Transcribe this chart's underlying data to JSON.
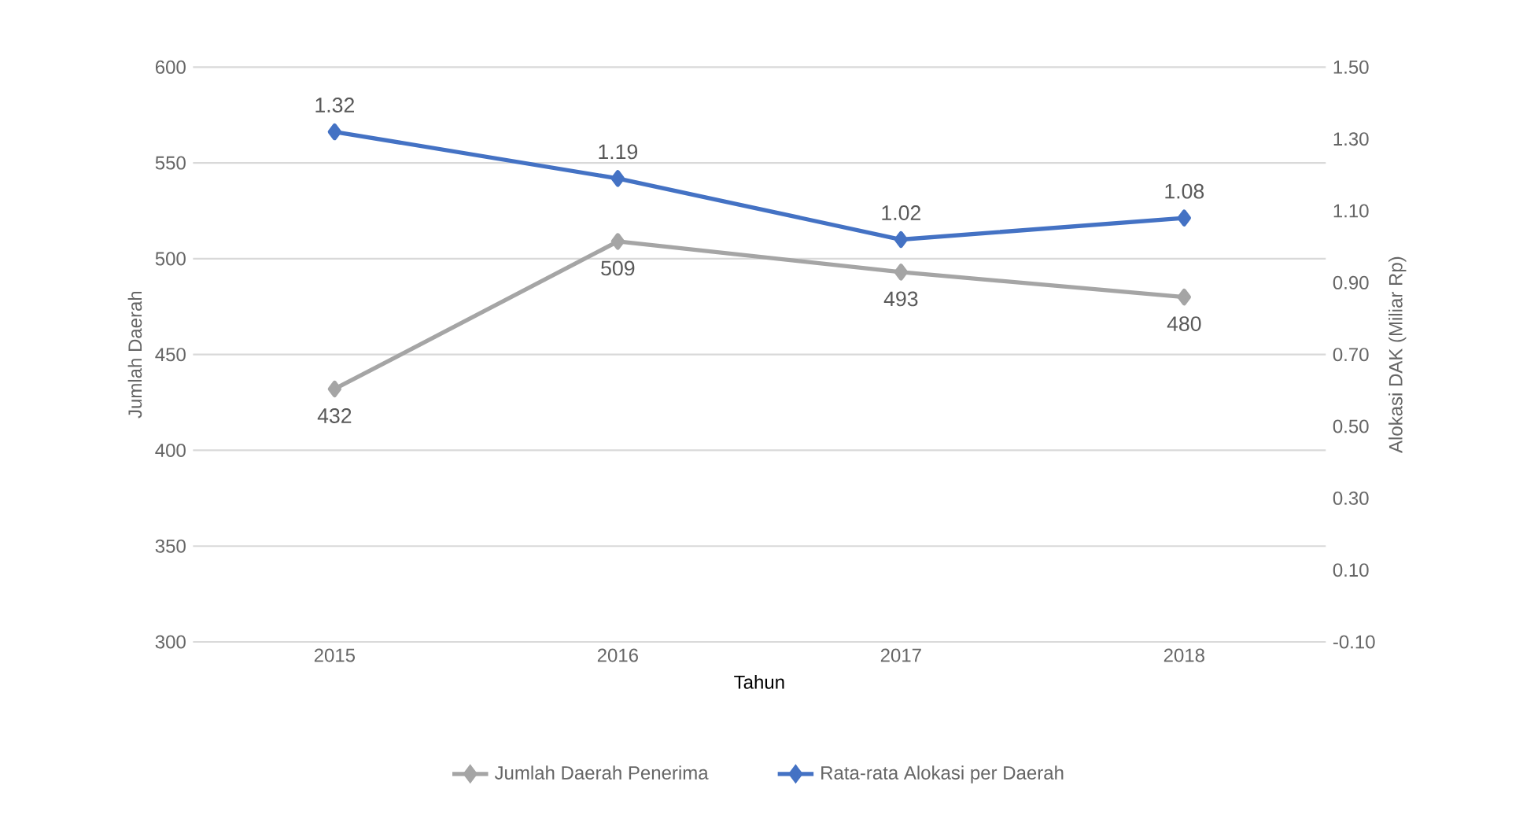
{
  "chart_data": {
    "type": "line",
    "categories": [
      "2015",
      "2016",
      "2017",
      "2018"
    ],
    "xlabel": "Tahun",
    "ylabel": "Jumlah Daerah",
    "y2label": "Alokasi DAK (Miliar Rp)",
    "series": [
      {
        "name": "Jumlah Daerah Penerima",
        "color": "#a5a5a5",
        "values": [
          432,
          509,
          493,
          480
        ]
      },
      {
        "name": "Rata-rata Alokasi per Daerah",
        "color": "#4472c4",
        "axis": "y2",
        "values": [
          1.32,
          1.19,
          1.02,
          1.08
        ]
      }
    ],
    "ylim": [
      300,
      600
    ],
    "yticks": [
      300,
      350,
      400,
      450,
      500,
      550,
      600
    ],
    "y2lim": [
      -0.1,
      1.5
    ],
    "y2ticks": [
      {
        "value": -0.1,
        "label": "-0.10"
      },
      {
        "value": 0.1,
        "label": "0.10"
      },
      {
        "value": 0.3,
        "label": "0.30"
      },
      {
        "value": 0.5,
        "label": "0.50"
      },
      {
        "value": 0.7,
        "label": "0.70"
      },
      {
        "value": 0.9,
        "label": "0.90"
      },
      {
        "value": 1.1,
        "label": "1.10"
      },
      {
        "value": 1.3,
        "label": "1.30"
      },
      {
        "value": 1.5,
        "label": "1.50"
      }
    ],
    "grid": "y",
    "legend": "bottom",
    "marker": "diamond",
    "data_labels": true
  }
}
